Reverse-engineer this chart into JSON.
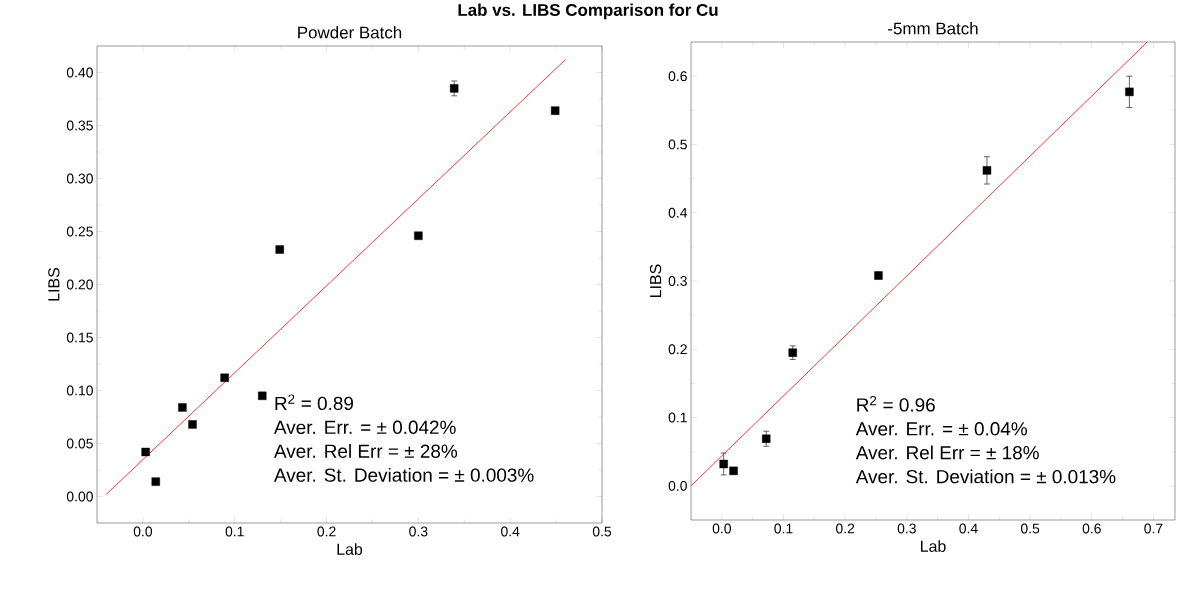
{
  "chart_data": [
    {
      "type": "scatter",
      "subtitle": "Lab vs. LIBS Comparison for Cu",
      "title": "Powder Batch",
      "xlabel": "Lab",
      "ylabel": "LIBS",
      "xlim": [
        -0.05,
        0.5
      ],
      "ylim": [
        -0.025,
        0.425
      ],
      "xticks": [
        {
          "value": 0,
          "label": "0.0"
        },
        0.1,
        0.2,
        0.3,
        0.4,
        0.5
      ],
      "yticks": [
        {
          "value": 0,
          "label": "0.00"
        },
        0.05,
        {
          "value": 0.1,
          "label": "0.10"
        },
        0.15,
        {
          "value": 0.2,
          "label": "0.20"
        },
        0.25,
        {
          "value": 0.3,
          "label": "0.30"
        },
        0.35,
        {
          "value": 0.4,
          "label": "0.40"
        }
      ],
      "series": [
        {
          "type": "scatter",
          "color": "#000000",
          "marker": "square",
          "x": [
            0.003,
            0.014,
            0.043,
            0.054,
            0.089,
            0.13,
            0.149,
            0.3,
            0.339,
            0.449
          ],
          "values": [
            0.042,
            0.014,
            0.084,
            0.068,
            0.112,
            0.095,
            0.233,
            0.246,
            0.385,
            0.364
          ],
          "errors": [
            null,
            null,
            null,
            null,
            null,
            null,
            null,
            null,
            0.007,
            0.003
          ]
        },
        {
          "type": "line",
          "color": "#ff0000",
          "x": [
            -0.04,
            0.46
          ],
          "values": [
            0.002,
            0.412
          ]
        }
      ],
      "annotations": [
        "R$^{2}$ = 0.89",
        "Aver. Err. = ± 0.042%",
        "Aver. Rel Err = ± 28%",
        "Aver. St. Deviation = ± 0.003%"
      ]
    },
    {
      "type": "scatter",
      "title": "-5mm Batch",
      "xlabel": "Lab",
      "ylabel": "LIBS",
      "xlim": [
        -0.05,
        0.735
      ],
      "ylim": [
        -0.05,
        0.65
      ],
      "xticks": [
        {
          "value": 0,
          "label": "0.0"
        },
        0.1,
        0.2,
        0.3,
        0.4,
        0.5,
        0.6,
        0.7
      ],
      "yticks": [
        {
          "value": 0,
          "label": "0.0"
        },
        0.1,
        0.2,
        0.3,
        0.4,
        0.5,
        0.6
      ],
      "series": [
        {
          "type": "scatter",
          "color": "#000000",
          "marker": "square",
          "x": [
            0.003,
            0.019,
            0.072,
            0.115,
            0.254,
            0.43,
            0.661
          ],
          "values": [
            0.032,
            0.022,
            0.069,
            0.195,
            0.308,
            0.462,
            0.577
          ],
          "errors": [
            0.016,
            null,
            0.011,
            0.01,
            0.005,
            0.02,
            0.023
          ]
        },
        {
          "type": "line",
          "color": "#ff0000",
          "x": [
            -0.05,
            0.69
          ],
          "values": [
            0.0,
            0.65
          ]
        }
      ],
      "annotations": [
        "R$^{2}$ = 0.96",
        "Aver. Err. = ± 0.04%",
        "Aver. Rel Err = ± 18%",
        "Aver. St. Deviation = ± 0.013%"
      ]
    }
  ]
}
